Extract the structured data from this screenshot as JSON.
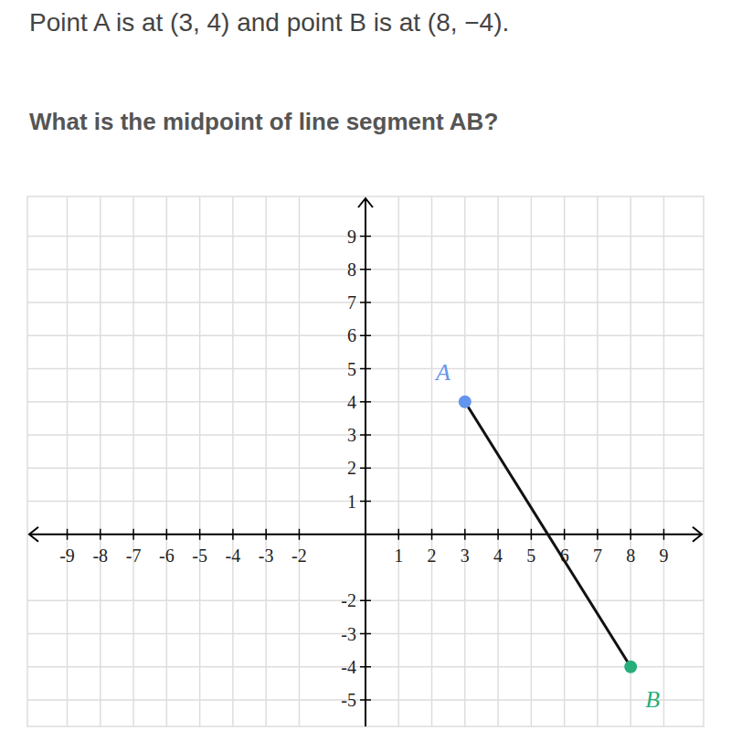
{
  "chart_data": {
    "type": "line",
    "subtitle": "Point A is at (3, 4) and point B is at (8, −4).",
    "title": "What is the midpoint of line segment AB?",
    "x": [
      3,
      8
    ],
    "values": [
      4,
      -4
    ],
    "point_labels": [
      "A",
      "B"
    ],
    "colors": [
      "#6495ed",
      "#28ae7b"
    ],
    "color": "#111111",
    "marker": "circle",
    "xlim": [
      -10.2,
      10.2
    ],
    "ylim": [
      -5.8,
      10.2
    ],
    "xticks": [
      -9,
      -8,
      -7,
      -6,
      -5,
      -4,
      -3,
      -2,
      1,
      2,
      3,
      4,
      5,
      6,
      7,
      8,
      9
    ],
    "yticks": [
      -5,
      -4,
      -3,
      -2,
      1,
      2,
      3,
      4,
      5,
      6,
      7,
      8,
      9
    ],
    "grid": true
  }
}
